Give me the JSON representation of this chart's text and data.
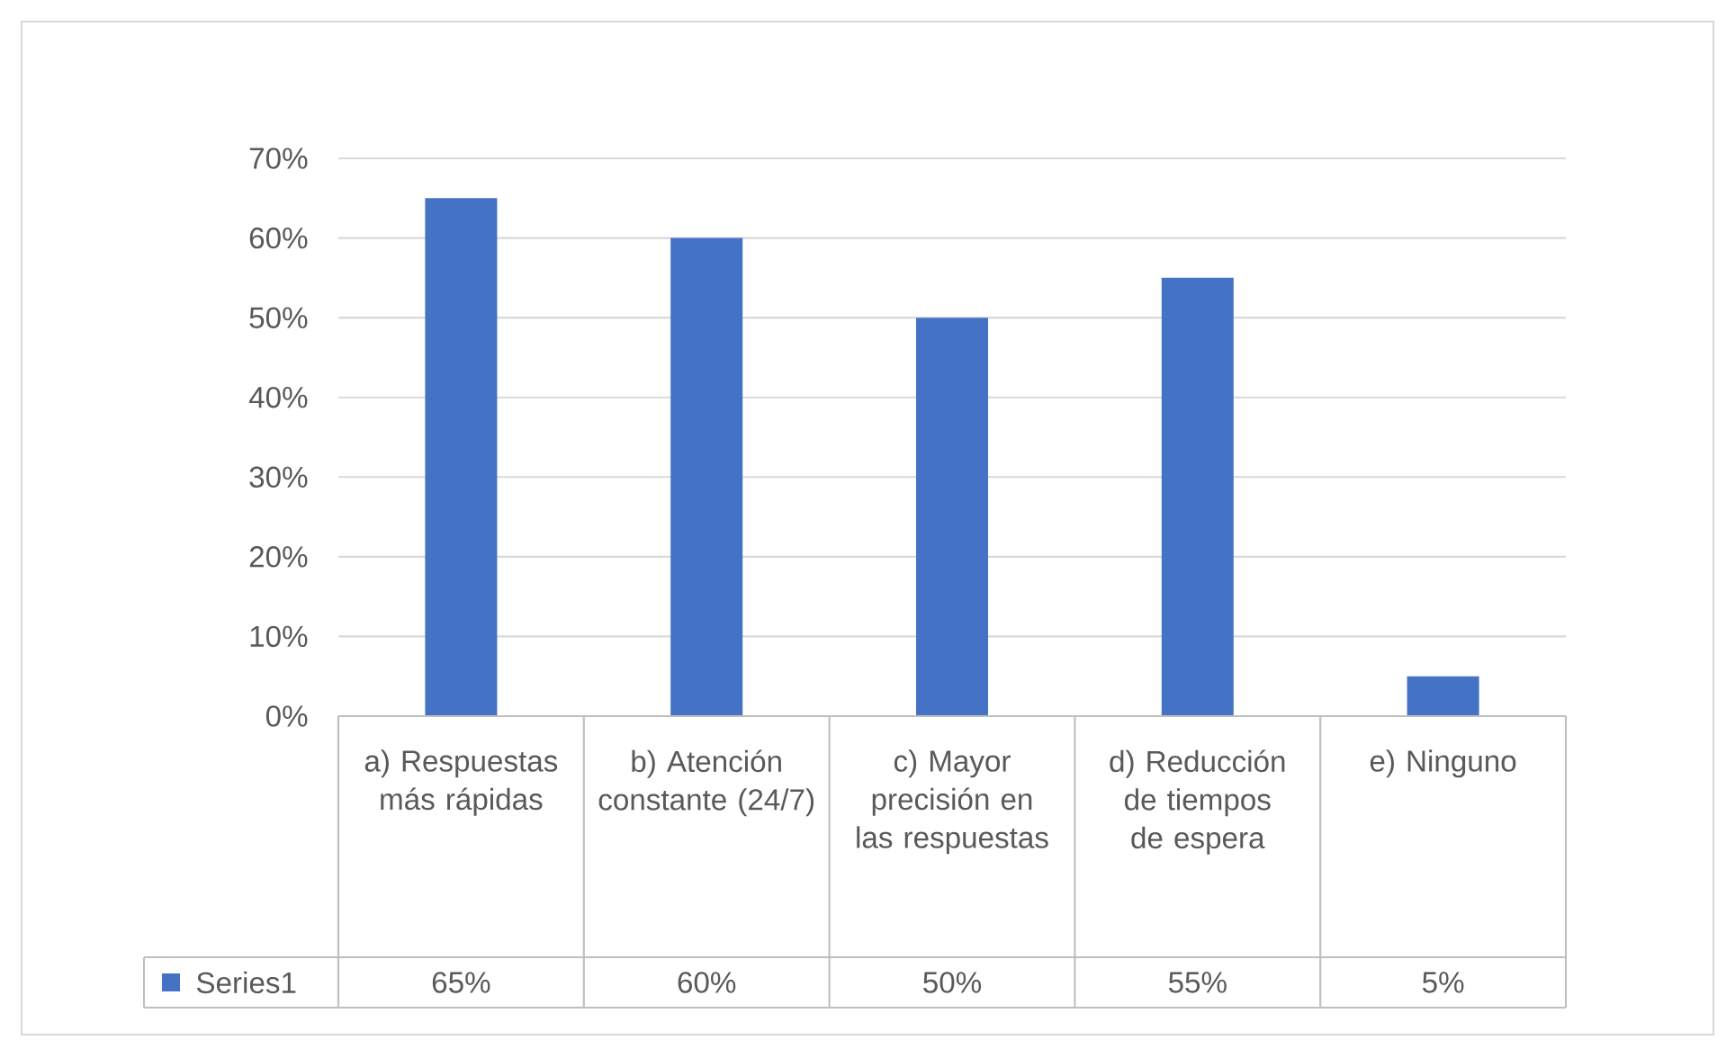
{
  "chart_data": {
    "type": "bar",
    "categories": [
      "a) Respuestas más rápidas",
      "b) Atención constante (24/7)",
      "c) Mayor precisión en las respuestas",
      "d) Reducción de tiempos de espera",
      "e) Ninguno"
    ],
    "series": [
      {
        "name": "Series1",
        "color": "#4472c4",
        "values": [
          65,
          60,
          50,
          55,
          5
        ],
        "value_labels": [
          "65%",
          "60%",
          "50%",
          "55%",
          "5%"
        ]
      }
    ],
    "ylim": [
      0,
      70
    ],
    "yticks": [
      {
        "value": 0,
        "label": "0%"
      },
      {
        "value": 10,
        "label": "10%"
      },
      {
        "value": 20,
        "label": "20%"
      },
      {
        "value": 30,
        "label": "30%"
      },
      {
        "value": 40,
        "label": "40%"
      },
      {
        "value": 50,
        "label": "50%"
      },
      {
        "value": 60,
        "label": "60%"
      },
      {
        "value": 70,
        "label": "70%"
      }
    ],
    "grid": "y",
    "legend": "bottom"
  }
}
